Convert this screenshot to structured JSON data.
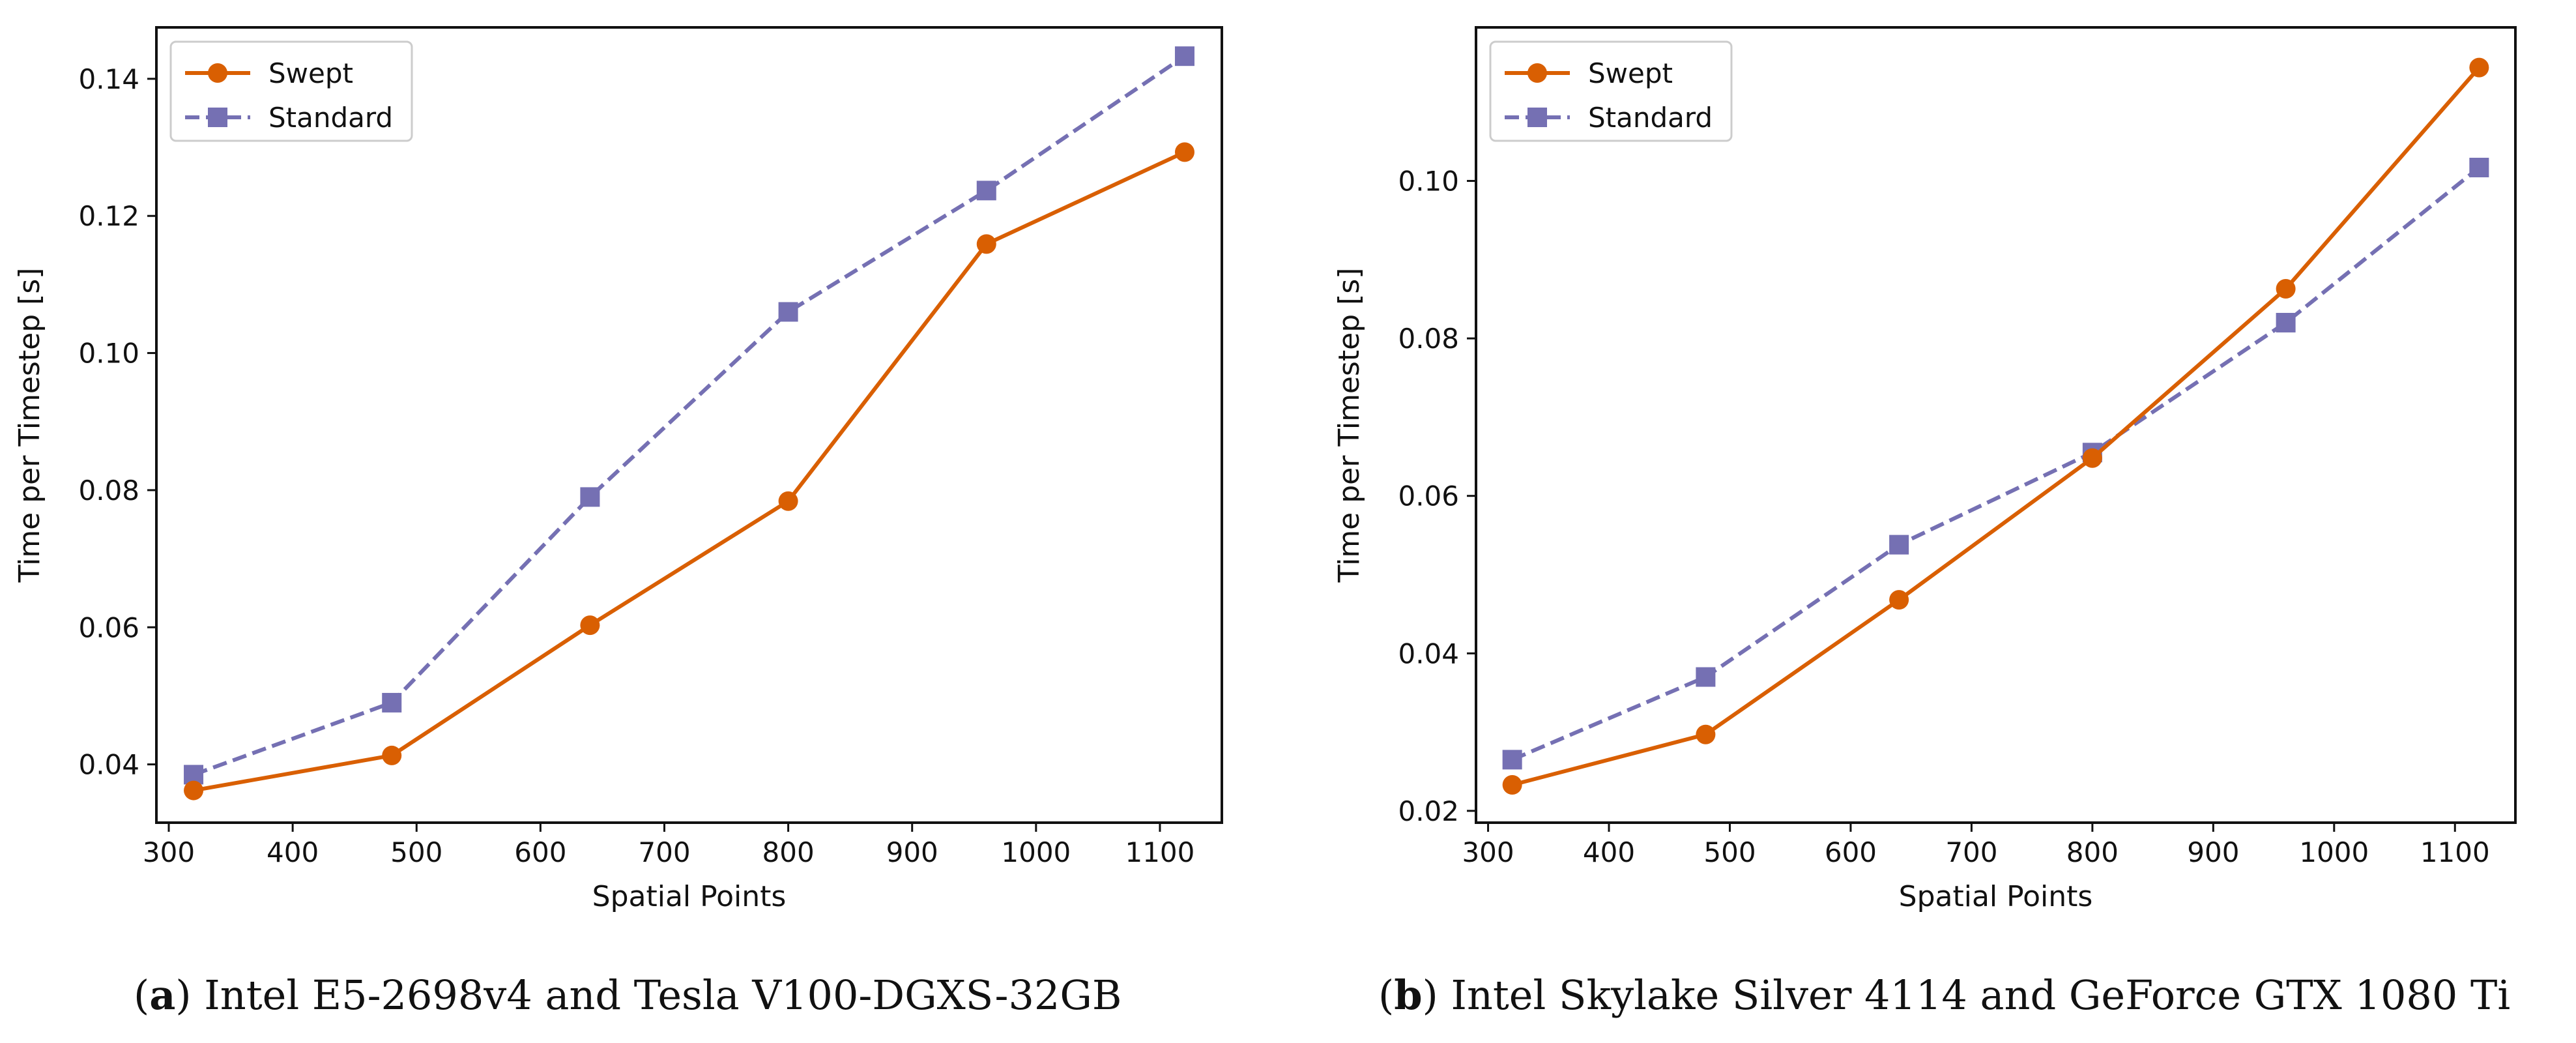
{
  "colors": {
    "swept": "#d95f02",
    "standard": "#7570b3",
    "axis": "#111111"
  },
  "chart_data": [
    {
      "type": "line",
      "panel_label": "a",
      "caption": "Intel E5-2698v4 and Tesla V100-DGXS-32GB",
      "xlabel": "Spatial Points",
      "ylabel": "Time per Timestep [s]",
      "xlim": [
        290,
        1150
      ],
      "ylim": [
        0.0315,
        0.1475
      ],
      "xticks": [
        300,
        400,
        500,
        600,
        700,
        800,
        900,
        1000,
        1100
      ],
      "yticks": [
        0.04,
        0.06,
        0.08,
        0.1,
        0.12,
        0.14
      ],
      "ytick_labels": [
        "0.04",
        "0.06",
        "0.08",
        "0.10",
        "0.12",
        "0.14"
      ],
      "legend_position": "top-left",
      "x": [
        320,
        480,
        640,
        800,
        960,
        1120
      ],
      "series": [
        {
          "name": "Swept",
          "style": "solid",
          "marker": "circle",
          "values": [
            0.0362,
            0.0413,
            0.0603,
            0.0784,
            0.1159,
            0.1293
          ]
        },
        {
          "name": "Standard",
          "style": "dashed",
          "marker": "square",
          "values": [
            0.0385,
            0.049,
            0.079,
            0.106,
            0.1237,
            0.1433
          ]
        }
      ]
    },
    {
      "type": "line",
      "panel_label": "b",
      "caption": "Intel Skylake Silver 4114 and GeForce GTX 1080 Ti",
      "xlabel": "Spatial Points",
      "ylabel": "Time per Timestep [s]",
      "xlim": [
        290,
        1150
      ],
      "ylim": [
        0.0185,
        0.1195
      ],
      "xticks": [
        300,
        400,
        500,
        600,
        700,
        800,
        900,
        1000,
        1100
      ],
      "yticks": [
        0.02,
        0.04,
        0.06,
        0.08,
        0.1
      ],
      "ytick_labels": [
        "0.02",
        "0.04",
        "0.06",
        "0.08",
        "0.10"
      ],
      "legend_position": "top-left",
      "x": [
        320,
        480,
        640,
        800,
        960,
        1120
      ],
      "series": [
        {
          "name": "Swept",
          "style": "solid",
          "marker": "circle",
          "values": [
            0.0233,
            0.0297,
            0.0468,
            0.0648,
            0.0863,
            0.1144
          ]
        },
        {
          "name": "Standard",
          "style": "dashed",
          "marker": "square",
          "values": [
            0.0265,
            0.037,
            0.0538,
            0.0655,
            0.082,
            0.1017
          ]
        }
      ]
    }
  ]
}
